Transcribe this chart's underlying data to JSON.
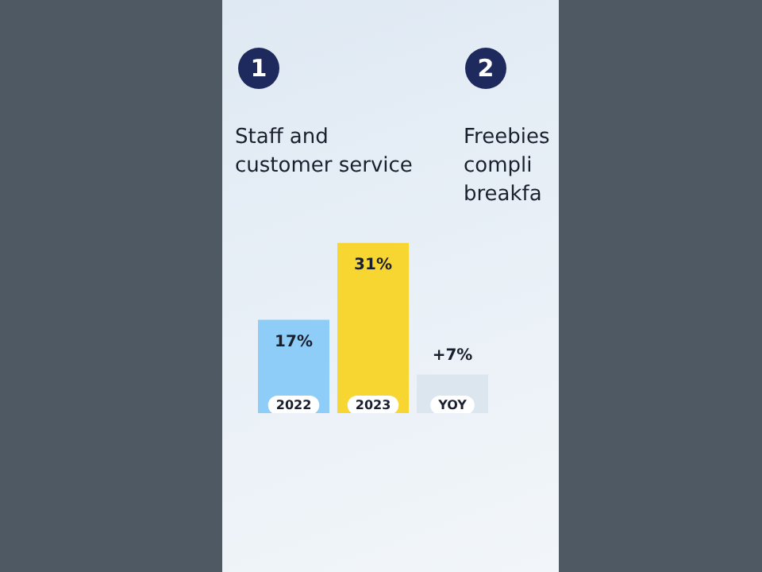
{
  "chart_data": {
    "type": "bar",
    "title": "Staff and customer service",
    "categories": [
      "2022",
      "2023",
      "YOY"
    ],
    "values": [
      17,
      31,
      7
    ],
    "colors": [
      "#8ecdf7",
      "#f7d632",
      "#dce6ee"
    ],
    "value_labels": [
      "17%",
      "31%",
      "+7%"
    ],
    "annotations": [
      "1",
      "2",
      "Freebies",
      "compli",
      "breakfa"
    ],
    "legend": false
  }
}
